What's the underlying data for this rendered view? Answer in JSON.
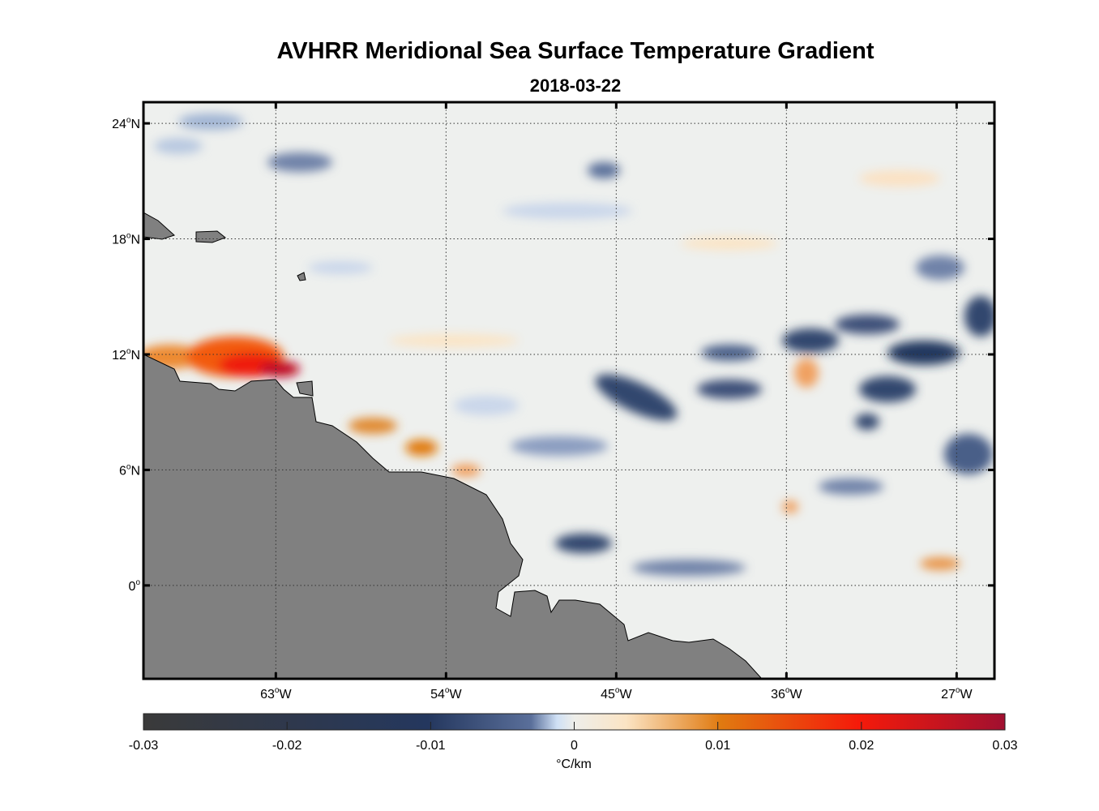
{
  "title": "AVHRR Meridional Sea Surface Temperature Gradient",
  "subtitle": "2018-03-22",
  "map": {
    "lat_range": [
      -4.85,
      25.1
    ],
    "lon_range": [
      -70,
      -25
    ],
    "lat_ticks": [
      {
        "value": 24,
        "label": "24",
        "hemi": "N"
      },
      {
        "value": 18,
        "label": "18",
        "hemi": "N"
      },
      {
        "value": 12,
        "label": "12",
        "hemi": "N"
      },
      {
        "value": 6,
        "label": "6",
        "hemi": "N"
      },
      {
        "value": 0,
        "label": "0",
        "hemi": ""
      }
    ],
    "lon_ticks": [
      {
        "value": -63,
        "label": "63",
        "hemi": "W"
      },
      {
        "value": -54,
        "label": "54",
        "hemi": "W"
      },
      {
        "value": -45,
        "label": "45",
        "hemi": "W"
      },
      {
        "value": -36,
        "label": "36",
        "hemi": "W"
      },
      {
        "value": -27,
        "label": "27",
        "hemi": "W"
      }
    ],
    "land_color": "#808080"
  },
  "colorbar": {
    "ticks": [
      "-0.03",
      "-0.02",
      "-0.01",
      "0",
      "0.01",
      "0.02",
      "0.03"
    ],
    "range": [
      -0.03,
      0.03
    ],
    "unit": "°C/km",
    "colors": [
      "#3a3a3a",
      "#24375e",
      "#5a6f9a",
      "#cfe0f5",
      "#eeeeea",
      "#fbe4c4",
      "#e07a10",
      "#f51a0a",
      "#a01030"
    ]
  }
}
